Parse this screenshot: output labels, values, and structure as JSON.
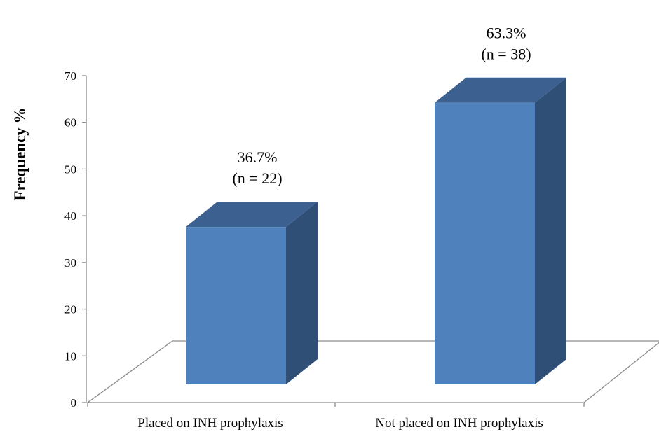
{
  "chart_data": {
    "type": "bar",
    "categories": [
      "Placed on INH prophylaxis",
      "Not placed on INH prophylaxis"
    ],
    "values": [
      36.7,
      63.3
    ],
    "counts": [
      22,
      38
    ],
    "data_labels": [
      {
        "percent": "36.7%",
        "count": "(n = 22)"
      },
      {
        "percent": "63.3%",
        "count": "(n = 38)"
      }
    ],
    "title": "",
    "xlabel": "",
    "ylabel": "Frequency %",
    "ylim": [
      0,
      70
    ],
    "yticks": [
      "0",
      "10",
      "20",
      "30",
      "40",
      "50",
      "60",
      "70"
    ],
    "grid": false,
    "legend": "none",
    "style": "3d",
    "colors": {
      "front": "#4f81bd",
      "side": "#2f4f77",
      "top": "#3c6090",
      "axis": "#8c8c8c"
    }
  }
}
